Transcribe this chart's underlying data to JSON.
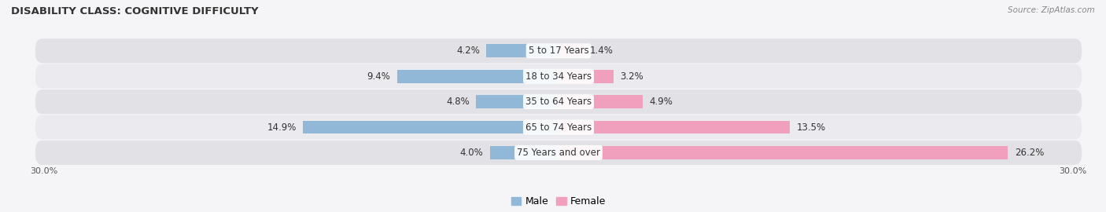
{
  "title": "DISABILITY CLASS: COGNITIVE DIFFICULTY",
  "source": "Source: ZipAtlas.com",
  "categories": [
    "5 to 17 Years",
    "18 to 34 Years",
    "35 to 64 Years",
    "65 to 74 Years",
    "75 Years and over"
  ],
  "male_values": [
    4.2,
    9.4,
    4.8,
    14.9,
    4.0
  ],
  "female_values": [
    1.4,
    3.2,
    4.9,
    13.5,
    26.2
  ],
  "xlim": 30.0,
  "male_color": "#92b8d8",
  "female_color": "#f0a0bc",
  "row_bg_color": "#e2e2e6",
  "row_alt_color": "#ebebef",
  "fig_bg_color": "#f5f5f7",
  "bar_height": 0.52,
  "label_fontsize": 8.5,
  "title_fontsize": 9.5,
  "axis_label_fontsize": 8
}
